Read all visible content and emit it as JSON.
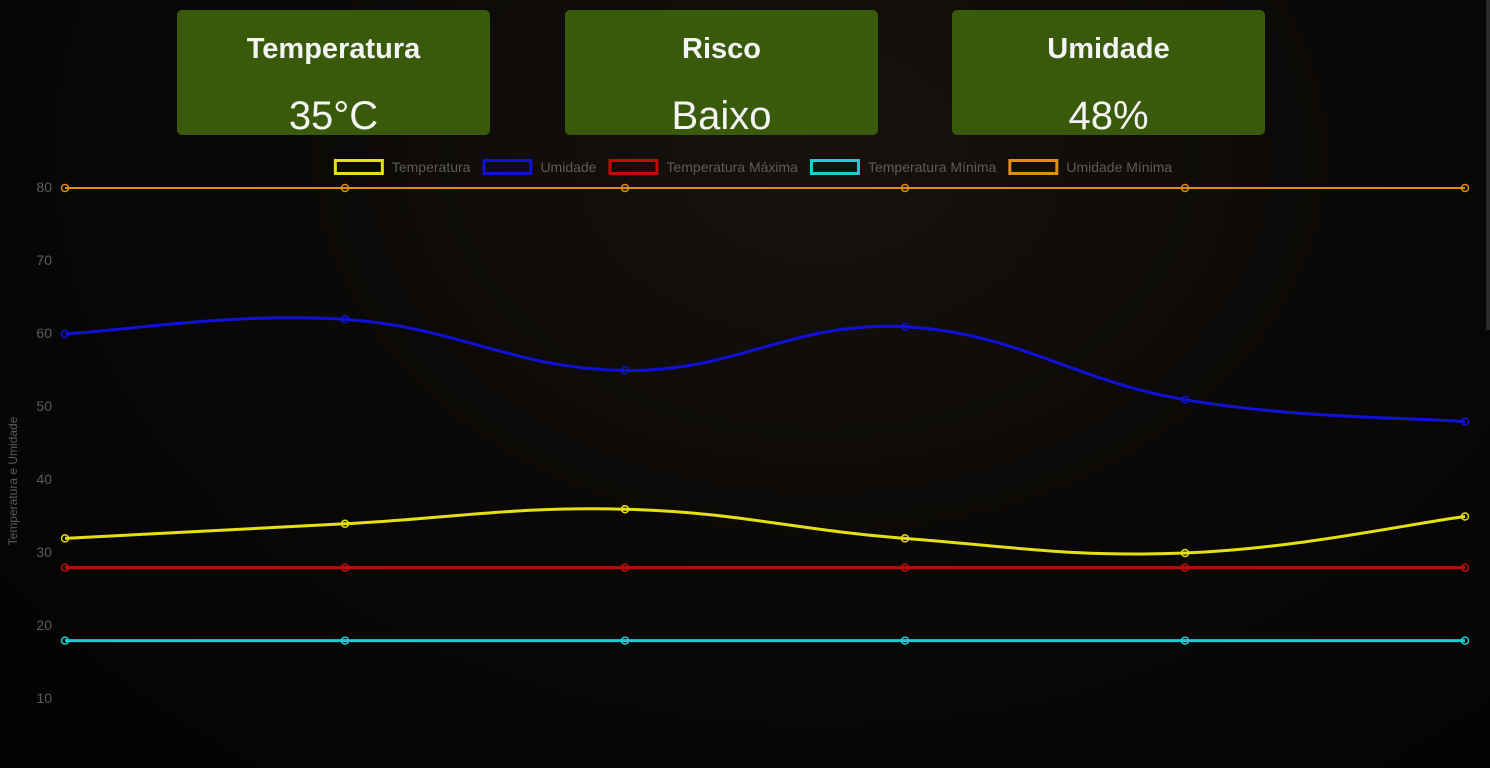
{
  "cards": {
    "temperature": {
      "title": "Temperatura",
      "value": "35°C"
    },
    "risk": {
      "title": "Risco",
      "value": "Baixo"
    },
    "humidity": {
      "title": "Umidade",
      "value": "48%"
    }
  },
  "chart_data": {
    "type": "line",
    "ylabel": "Temperatura e Umidade",
    "yticks": [
      80,
      70,
      60,
      50,
      40,
      30,
      20,
      10
    ],
    "ylim": [
      0,
      80
    ],
    "x": [
      1,
      2,
      3,
      4,
      5,
      6
    ],
    "legend_position": "top-center",
    "grid": false,
    "series": [
      {
        "name": "Temperatura",
        "color": "#e5e014",
        "values": [
          32,
          34,
          36,
          32,
          30,
          35
        ]
      },
      {
        "name": "Umidade",
        "color": "#1010d8",
        "values": [
          60,
          62,
          55,
          61,
          51,
          48
        ]
      },
      {
        "name": "Temperatura Máxima",
        "color": "#c40a0a",
        "values": [
          28,
          28,
          28,
          28,
          28,
          28
        ]
      },
      {
        "name": "Temperatura Mínima",
        "color": "#1ccdd4",
        "values": [
          18,
          18,
          18,
          18,
          18,
          18
        ]
      },
      {
        "name": "Umidade Mínima",
        "color": "#e28c10",
        "values": [
          80,
          80,
          80,
          80,
          80,
          80
        ]
      }
    ]
  }
}
